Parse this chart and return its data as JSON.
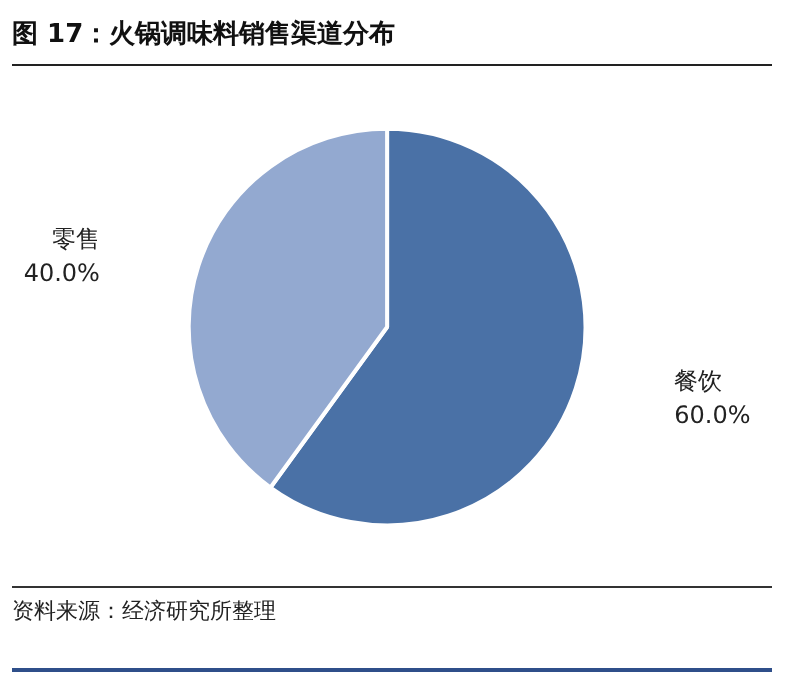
{
  "chart_data": {
    "type": "pie",
    "title": "图 17：火锅调味料销售渠道分布",
    "categories": [
      "餐饮",
      "零售"
    ],
    "values": [
      60,
      40
    ],
    "value_labels": [
      "60.0%",
      "40.0%"
    ],
    "colors": [
      "#4a71a6",
      "#93a9d0"
    ],
    "annotations": [
      "资料来源：经济研究所整理"
    ],
    "legend": false
  }
}
